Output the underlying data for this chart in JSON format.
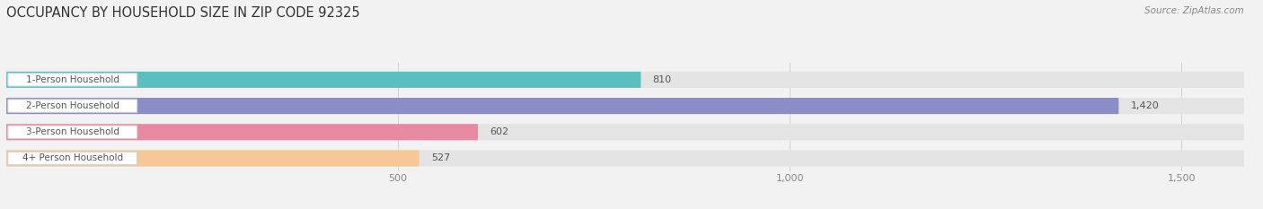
{
  "title": "OCCUPANCY BY HOUSEHOLD SIZE IN ZIP CODE 92325",
  "source": "Source: ZipAtlas.com",
  "categories": [
    "1-Person Household",
    "2-Person Household",
    "3-Person Household",
    "4+ Person Household"
  ],
  "values": [
    810,
    1420,
    602,
    527
  ],
  "bar_colors": [
    "#5BBFC0",
    "#8B8CC8",
    "#E889A2",
    "#F5C896"
  ],
  "label_bg_color": "#FFFFFF",
  "background_color": "#F2F2F2",
  "bar_background_color": "#E4E4E4",
  "xlim": [
    0,
    1580
  ],
  "xticks": [
    500,
    1000,
    1500
  ],
  "value_labels": [
    "810",
    "1,420",
    "602",
    "527"
  ],
  "title_fontsize": 10.5,
  "source_fontsize": 7.5,
  "bar_label_fontsize": 7.5,
  "value_fontsize": 8,
  "figsize": [
    14.06,
    2.33
  ],
  "dpi": 100
}
